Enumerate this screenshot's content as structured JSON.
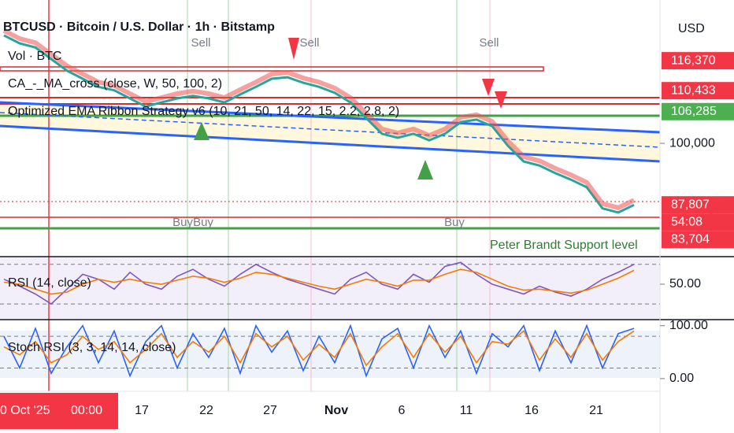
{
  "header": {
    "title": "BTCUSD · Bitcoin / U.S. Dollar · 1h · Bitstamp",
    "volume": "Vol · BTC",
    "indicator1": "CA_-_MA_cross (close, W, 50, 100, 2)",
    "indicator2": "Optimized EMA Ribbon Strategy v6 (10, 21, 50, 14, 22, 15, 2.2, 2.8, 2)",
    "currency": "USD"
  },
  "overlays": {
    "support_label": "Peter Brandt Support level",
    "sell_labels": [
      "Sell",
      "Sell",
      "Sell"
    ],
    "buy_labels": [
      "Buy",
      "Buy",
      "Buy"
    ],
    "countdown": "54:08"
  },
  "x_axis": {
    "first_date": "0 Oct '25",
    "first_time": "00:00",
    "labels": [
      "17",
      "22",
      "27",
      "Nov",
      "6",
      "11",
      "16",
      "21"
    ]
  },
  "chart_data": [
    {
      "type": "line",
      "color": "#26a69a",
      "values": [
        121400,
        119800,
        119000,
        116700,
        114400,
        112800,
        111200,
        110500,
        108900,
        107300,
        108100,
        108900,
        109400,
        108900,
        108100,
        109700,
        111200,
        112800,
        113100,
        112000,
        111200,
        110000,
        108100,
        105000,
        101900,
        101100,
        101900,
        100600,
        101900,
        104200,
        104700,
        103400,
        99500,
        96400,
        95600,
        94100,
        92800,
        91300,
        87100,
        86300,
        87800
      ],
      "ylim": [
        77700,
        128400
      ],
      "yticks": [
        {
          "value": 100000,
          "label": "100,000"
        }
      ],
      "price_tags": [
        {
          "value": 116370,
          "label": "116,370",
          "color": "#f23645"
        },
        {
          "value": 110433,
          "label": "110,433",
          "color": "#f23645"
        },
        {
          "value": 106285,
          "label": "106,285",
          "color": "#4caf50"
        },
        {
          "value": 87807,
          "label": "87,807",
          "color": "#f23645"
        },
        {
          "value": 83704,
          "label": "83,704",
          "color": "#f23645"
        }
      ]
    },
    {
      "type": "line",
      "title": "RSI (14, close)",
      "series": [
        {
          "color": "#7e57c2",
          "values": [
            55,
            48,
            40,
            30,
            45,
            60,
            55,
            45,
            62,
            50,
            45,
            58,
            65,
            55,
            48,
            60,
            70,
            62,
            55,
            50,
            45,
            40,
            55,
            62,
            50,
            45,
            60,
            52,
            68,
            72,
            60,
            50,
            45,
            40,
            48,
            42,
            38,
            45,
            55,
            62,
            70
          ]
        },
        {
          "color": "#f57c00",
          "values": [
            52,
            50,
            45,
            40,
            42,
            50,
            55,
            52,
            55,
            52,
            50,
            54,
            58,
            56,
            52,
            56,
            62,
            60,
            56,
            52,
            48,
            45,
            50,
            55,
            52,
            48,
            54,
            54,
            60,
            65,
            62,
            55,
            48,
            44,
            45,
            43,
            41,
            44,
            50,
            56,
            64
          ]
        }
      ],
      "ylim": [
        15,
        77
      ],
      "yticks": [
        {
          "value": 50,
          "label": "50.00"
        }
      ],
      "levels": [
        70,
        30
      ]
    },
    {
      "type": "line",
      "title": "Stoch RSI (3, 3, 14, 14, close)",
      "series": [
        {
          "color": "#2962ff",
          "values": [
            80,
            20,
            95,
            10,
            60,
            100,
            30,
            90,
            5,
            70,
            100,
            20,
            85,
            40,
            95,
            10,
            100,
            50,
            90,
            15,
            80,
            30,
            100,
            5,
            75,
            95,
            20,
            100,
            40,
            90,
            10,
            85,
            60,
            100,
            15,
            90,
            30,
            100,
            20,
            85,
            95
          ]
        },
        {
          "color": "#f57c00",
          "values": [
            60,
            45,
            70,
            30,
            45,
            80,
            55,
            70,
            30,
            55,
            85,
            40,
            70,
            50,
            80,
            30,
            85,
            60,
            80,
            35,
            65,
            40,
            85,
            25,
            60,
            85,
            40,
            85,
            50,
            80,
            30,
            70,
            65,
            90,
            35,
            75,
            40,
            85,
            35,
            70,
            90
          ]
        }
      ],
      "ylim": [
        -24,
        110
      ],
      "yticks": [
        {
          "value": 100,
          "label": "100.00"
        },
        {
          "value": 0,
          "label": "0.00"
        }
      ],
      "levels": [
        80,
        20
      ]
    }
  ]
}
